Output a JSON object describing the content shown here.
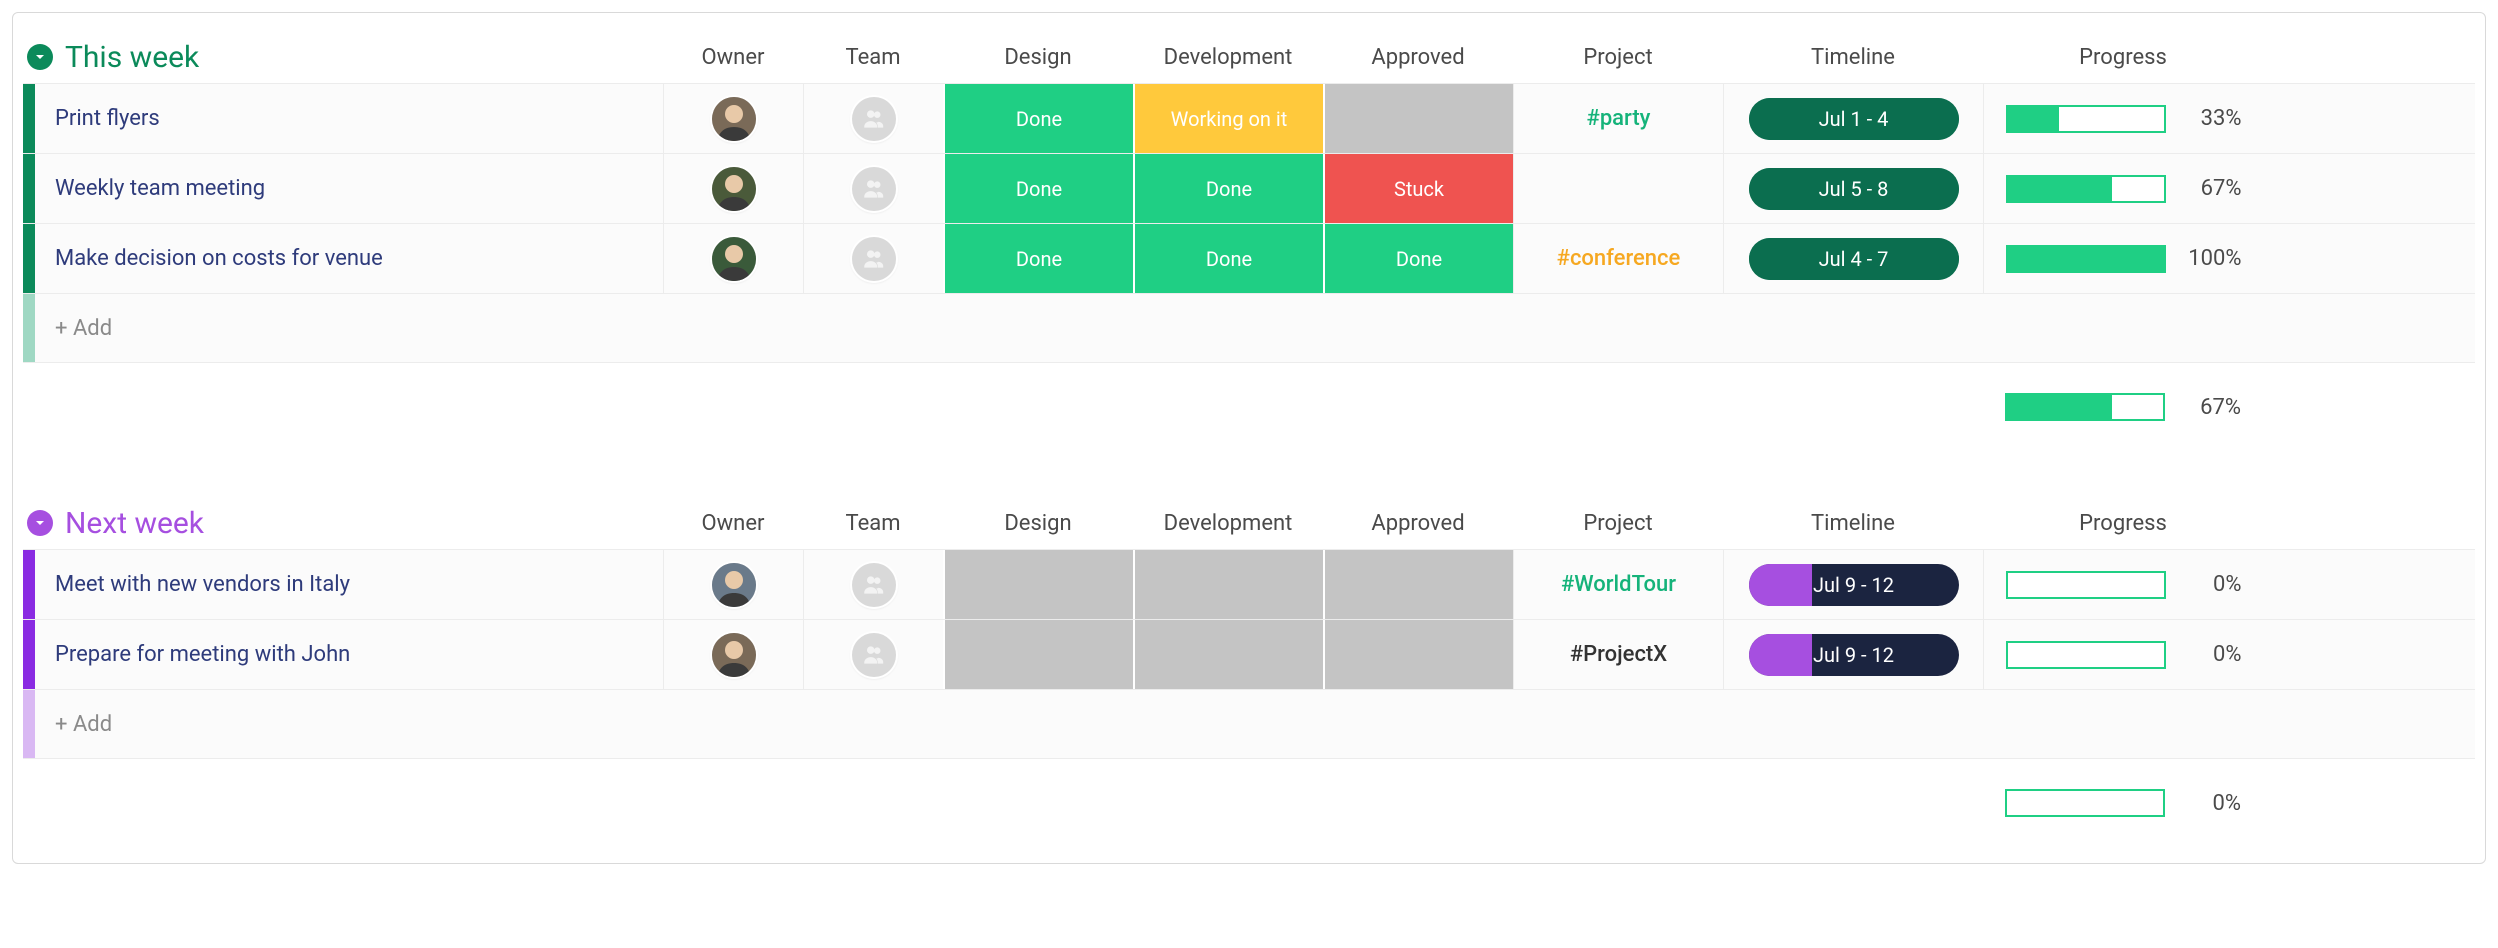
{
  "status_colors": {
    "done": {
      "bg": "#1fcf84",
      "label": "Done"
    },
    "working": {
      "bg": "#ffc93c",
      "label": "Working on it"
    },
    "stuck": {
      "bg": "#ef5350",
      "label": "Stuck"
    },
    "empty": {
      "bg": "#c4c4c4",
      "label": ""
    }
  },
  "columns": [
    "Owner",
    "Team",
    "Design",
    "Development",
    "Approved",
    "Project",
    "Timeline",
    "Progress"
  ],
  "add_label": "+ Add",
  "progress_bar": {
    "border_color": "#1fcf84",
    "fill_color": "#1fcf84"
  },
  "groups": [
    {
      "id": "this-week",
      "title": "This week",
      "accent": "#0b8a5a",
      "bar_color": "#0b8a5a",
      "bar_color_light": "#9fd8c3",
      "rows": [
        {
          "name": "Print flyers",
          "owner_avatar": {
            "bg": "#7a6a58",
            "ring": "#ffffff"
          },
          "design": "done",
          "development": "working",
          "approved": "empty",
          "project": {
            "text": "#party",
            "color": "#15b37a"
          },
          "timeline": {
            "label": "Jul 1 - 4",
            "bg": "#0b6e4f",
            "fill_bg": "#0b6e4f",
            "fill_pct": 100
          },
          "progress_pct": 33
        },
        {
          "name": "Weekly team meeting",
          "owner_avatar": {
            "bg": "#4a5a3a",
            "ring": "#ffffff"
          },
          "design": "done",
          "development": "done",
          "approved": "stuck",
          "project": {
            "text": "",
            "color": "#333333"
          },
          "timeline": {
            "label": "Jul 5 - 8",
            "bg": "#0b6e4f",
            "fill_bg": "#0b6e4f",
            "fill_pct": 100
          },
          "progress_pct": 67
        },
        {
          "name": "Make decision on costs for venue",
          "owner_avatar": {
            "bg": "#3a5a3a",
            "ring": "#ffffff"
          },
          "design": "done",
          "development": "done",
          "approved": "done",
          "project": {
            "text": "#conference",
            "color": "#f6a821"
          },
          "timeline": {
            "label": "Jul 4 - 7",
            "bg": "#0b6e4f",
            "fill_bg": "#0b6e4f",
            "fill_pct": 100
          },
          "progress_pct": 100
        }
      ],
      "summary_progress_pct": 67
    },
    {
      "id": "next-week",
      "title": "Next week",
      "accent": "#a64fe0",
      "bar_color": "#8a2be2",
      "bar_color_light": "#d9b8f3",
      "rows": [
        {
          "name": "Meet with new vendors in Italy",
          "owner_avatar": {
            "bg": "#6a7a8a",
            "ring": "#ffffff"
          },
          "design": "empty",
          "development": "empty",
          "approved": "empty",
          "project": {
            "text": "#WorldTour",
            "color": "#15b37a"
          },
          "timeline": {
            "label": "Jul 9 - 12",
            "bg": "#1b2440",
            "fill_bg": "#a64fe0",
            "fill_pct": 30
          },
          "progress_pct": 0
        },
        {
          "name": "Prepare for meeting with John",
          "owner_avatar": {
            "bg": "#7a6a58",
            "ring": "#ffffff"
          },
          "design": "empty",
          "development": "empty",
          "approved": "empty",
          "project": {
            "text": "#ProjectX",
            "color": "#333333"
          },
          "timeline": {
            "label": "Jul 9 - 12",
            "bg": "#1b2440",
            "fill_bg": "#a64fe0",
            "fill_pct": 30
          },
          "progress_pct": 0
        }
      ],
      "summary_progress_pct": 0
    }
  ]
}
